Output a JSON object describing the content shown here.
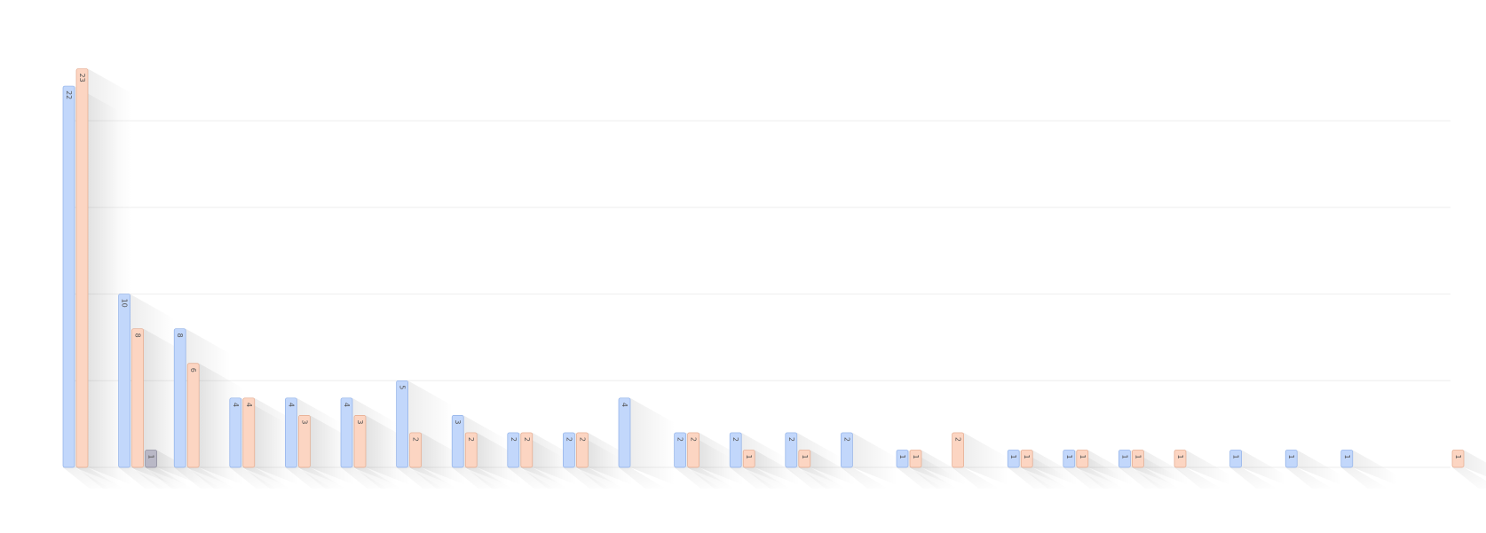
{
  "chart_data": {
    "type": "bar",
    "orientation": "vertical",
    "title": "",
    "xlabel": "",
    "ylabel": "",
    "ylim": [
      0,
      24
    ],
    "grid": true,
    "legend": "none",
    "category_count": 26,
    "series": [
      {
        "color": "#c2d7fb",
        "stroke": "#8fb0e8",
        "values": [
          22,
          10,
          8,
          4,
          4,
          4,
          5,
          3,
          2,
          2,
          4,
          2,
          2,
          2,
          2,
          1,
          null,
          1,
          1,
          1,
          null,
          1,
          1,
          1,
          null,
          null
        ]
      },
      {
        "color": "#fcd5c2",
        "stroke": "#e3a98d",
        "values": [
          23,
          8,
          6,
          4,
          3,
          3,
          2,
          2,
          2,
          2,
          null,
          2,
          1,
          1,
          null,
          1,
          2,
          1,
          1,
          1,
          1,
          null,
          null,
          null,
          null,
          1
        ]
      },
      {
        "color": "#b9b8c6",
        "stroke": "#8a899a",
        "values": [
          null,
          1,
          null,
          null,
          null,
          null,
          null,
          null,
          null,
          null,
          null,
          null,
          null,
          null,
          null,
          null,
          null,
          null,
          null,
          null,
          null,
          null,
          null,
          null,
          null,
          null
        ]
      }
    ]
  }
}
